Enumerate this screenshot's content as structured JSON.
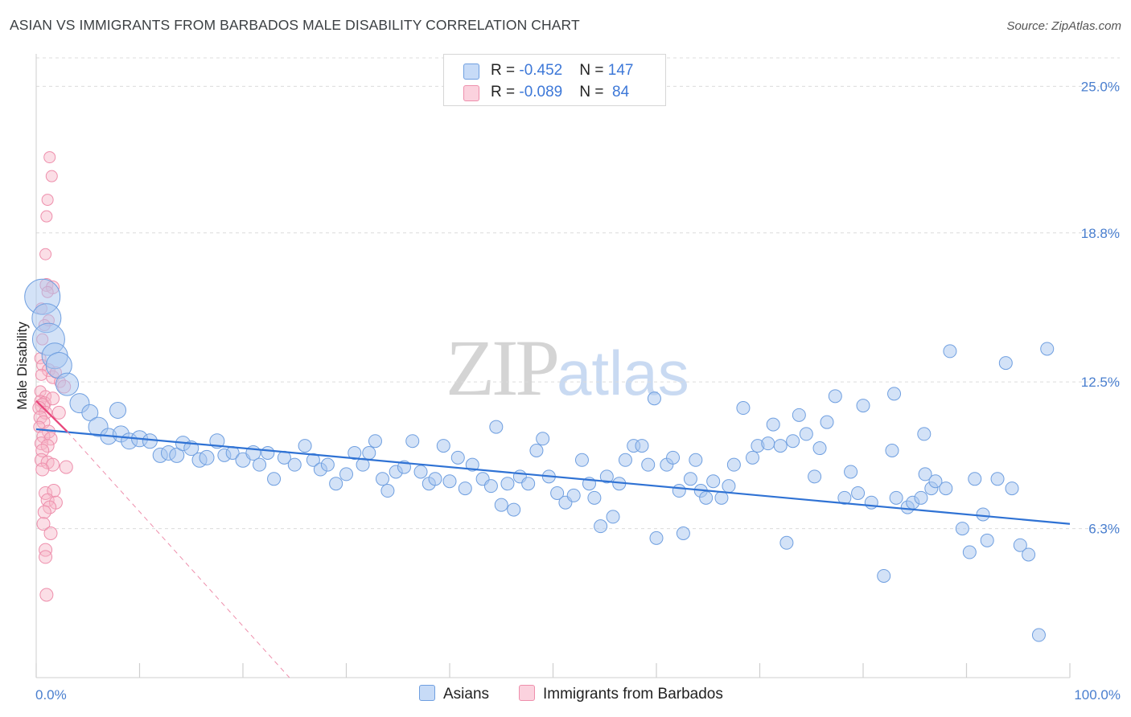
{
  "title": "ASIAN VS IMMIGRANTS FROM BARBADOS MALE DISABILITY CORRELATION CHART",
  "source": "Source: ZipAtlas.com",
  "watermark": {
    "zip": "ZIP",
    "atlas": "atlas"
  },
  "legend": {
    "rows": [
      {
        "r_label": "R = ",
        "r_value": "-0.452",
        "n_label": "N = ",
        "n_value": "147",
        "color": "#a8c5f0"
      },
      {
        "r_label": "R = ",
        "r_value": "-0.089",
        "n_label": "N = ",
        "n_value": " 84",
        "color": "#f7b6c8"
      }
    ]
  },
  "bottom_legend": [
    {
      "label": "Asians",
      "color": "#a8c5f0"
    },
    {
      "label": "Immigrants from Barbados",
      "color": "#f7b6c8"
    }
  ],
  "colors": {
    "blue_fill": "#a8c5f0",
    "blue_stroke": "#6f9fe0",
    "blue_line": "#2f72d4",
    "pink_fill": "#f7b6c8",
    "pink_stroke": "#ee8fac",
    "pink_line": "#e8447a",
    "grid": "#dcdcdc",
    "axis_label": "#4a7fcf"
  },
  "chart_data": {
    "type": "scatter",
    "title": "ASIAN VS IMMIGRANTS FROM BARBADOS MALE DISABILITY CORRELATION CHART",
    "xlabel": "",
    "ylabel": "Male Disability",
    "xlim": [
      0,
      100
    ],
    "ylim": [
      0,
      26.2
    ],
    "x_tick_labels": [
      "0.0%",
      "100.0%"
    ],
    "y_ticks": [
      6.3,
      12.5,
      18.8,
      25.0
    ],
    "y_tick_labels": [
      "6.3%",
      "12.5%",
      "18.8%",
      "25.0%"
    ],
    "series": [
      {
        "name": "Asians",
        "R": -0.452,
        "N": 147,
        "trend": {
          "x": [
            0,
            100
          ],
          "y": [
            10.5,
            6.5
          ]
        },
        "points": [
          [
            0.6,
            16.1,
            22
          ],
          [
            1.0,
            15.2,
            18
          ],
          [
            1.2,
            14.3,
            20
          ],
          [
            1.8,
            13.6,
            16
          ],
          [
            2.2,
            13.2,
            16
          ],
          [
            3.0,
            12.4,
            14
          ],
          [
            4.2,
            11.6,
            12
          ],
          [
            5.2,
            11.2,
            10
          ],
          [
            7.9,
            11.3,
            10
          ],
          [
            6.0,
            10.6,
            12
          ],
          [
            7.0,
            10.2,
            10
          ],
          [
            8.2,
            10.3,
            10
          ],
          [
            9.0,
            10.0,
            10
          ],
          [
            10.0,
            10.1,
            10
          ],
          [
            11.0,
            10.0,
            9
          ],
          [
            12.0,
            9.4,
            9
          ],
          [
            12.8,
            9.5,
            9
          ],
          [
            13.6,
            9.4,
            9
          ],
          [
            14.2,
            9.9,
            9
          ],
          [
            15.0,
            9.7,
            9
          ],
          [
            15.8,
            9.2,
            9
          ],
          [
            16.5,
            9.3,
            9
          ],
          [
            17.5,
            10.0,
            9
          ],
          [
            18.2,
            9.4,
            8
          ],
          [
            19.0,
            9.5,
            8
          ],
          [
            20.0,
            9.2,
            9
          ],
          [
            21.0,
            9.5,
            9
          ],
          [
            21.6,
            9.0,
            8
          ],
          [
            22.4,
            9.5,
            8
          ],
          [
            23.0,
            8.4,
            8
          ],
          [
            24.0,
            9.3,
            8
          ],
          [
            25.0,
            9.0,
            8
          ],
          [
            26.0,
            9.8,
            8
          ],
          [
            26.8,
            9.2,
            8
          ],
          [
            27.5,
            8.8,
            8
          ],
          [
            28.2,
            9.0,
            8
          ],
          [
            29.0,
            8.2,
            8
          ],
          [
            30.0,
            8.6,
            8
          ],
          [
            30.8,
            9.5,
            8
          ],
          [
            31.6,
            9.0,
            8
          ],
          [
            32.2,
            9.5,
            8
          ],
          [
            32.8,
            10.0,
            8
          ],
          [
            33.5,
            8.4,
            8
          ],
          [
            34.0,
            7.9,
            8
          ],
          [
            34.8,
            8.7,
            8
          ],
          [
            35.6,
            8.9,
            8
          ],
          [
            36.4,
            10.0,
            8
          ],
          [
            37.2,
            8.7,
            8
          ],
          [
            38.0,
            8.2,
            8
          ],
          [
            38.6,
            8.4,
            8
          ],
          [
            39.4,
            9.8,
            8
          ],
          [
            40.0,
            8.3,
            8
          ],
          [
            40.8,
            9.3,
            8
          ],
          [
            41.5,
            8.0,
            8
          ],
          [
            42.2,
            9.0,
            8
          ],
          [
            43.2,
            8.4,
            8
          ],
          [
            44.0,
            8.1,
            8
          ],
          [
            44.5,
            10.6,
            8
          ],
          [
            45.0,
            7.3,
            8
          ],
          [
            45.6,
            8.2,
            8
          ],
          [
            46.2,
            7.1,
            8
          ],
          [
            46.8,
            8.5,
            8
          ],
          [
            47.6,
            8.2,
            8
          ],
          [
            48.4,
            9.6,
            8
          ],
          [
            49.0,
            10.1,
            8
          ],
          [
            49.6,
            8.5,
            8
          ],
          [
            50.4,
            7.8,
            8
          ],
          [
            51.2,
            7.4,
            8
          ],
          [
            52.0,
            7.7,
            8
          ],
          [
            52.8,
            9.2,
            8
          ],
          [
            53.5,
            8.2,
            8
          ],
          [
            54.0,
            7.6,
            8
          ],
          [
            54.6,
            6.4,
            8
          ],
          [
            55.2,
            8.5,
            8
          ],
          [
            55.8,
            6.8,
            8
          ],
          [
            56.4,
            8.2,
            8
          ],
          [
            57.0,
            9.2,
            8
          ],
          [
            57.8,
            9.8,
            8
          ],
          [
            58.6,
            9.8,
            8
          ],
          [
            59.2,
            9.0,
            8
          ],
          [
            59.8,
            11.8,
            8
          ],
          [
            60.0,
            5.9,
            8
          ],
          [
            61.0,
            9.0,
            8
          ],
          [
            61.6,
            9.3,
            8
          ],
          [
            62.2,
            7.9,
            8
          ],
          [
            62.6,
            6.1,
            8
          ],
          [
            63.3,
            8.4,
            8
          ],
          [
            63.8,
            9.2,
            8
          ],
          [
            64.3,
            7.9,
            8
          ],
          [
            64.8,
            7.6,
            8
          ],
          [
            65.5,
            8.3,
            8
          ],
          [
            66.3,
            7.6,
            8
          ],
          [
            67.0,
            8.1,
            8
          ],
          [
            67.5,
            9.0,
            8
          ],
          [
            68.4,
            11.4,
            8
          ],
          [
            69.3,
            9.3,
            8
          ],
          [
            69.8,
            9.8,
            8
          ],
          [
            70.8,
            9.9,
            8
          ],
          [
            71.3,
            10.7,
            8
          ],
          [
            72.0,
            9.8,
            8
          ],
          [
            72.6,
            5.7,
            8
          ],
          [
            73.2,
            10.0,
            8
          ],
          [
            73.8,
            11.1,
            8
          ],
          [
            74.5,
            10.3,
            8
          ],
          [
            75.3,
            8.5,
            8
          ],
          [
            75.8,
            9.7,
            8
          ],
          [
            76.5,
            10.8,
            8
          ],
          [
            77.3,
            11.9,
            8
          ],
          [
            78.2,
            7.6,
            8
          ],
          [
            78.8,
            8.7,
            8
          ],
          [
            79.5,
            7.8,
            8
          ],
          [
            80.0,
            11.5,
            8
          ],
          [
            80.8,
            7.4,
            8
          ],
          [
            82.0,
            4.3,
            8
          ],
          [
            82.8,
            9.6,
            8
          ],
          [
            83.2,
            7.6,
            8
          ],
          [
            84.3,
            7.2,
            8
          ],
          [
            84.8,
            7.4,
            8
          ],
          [
            85.6,
            7.6,
            8
          ],
          [
            86.0,
            8.6,
            8
          ],
          [
            86.6,
            8.0,
            8
          ],
          [
            87.0,
            8.3,
            8
          ],
          [
            88.0,
            8.0,
            8
          ],
          [
            88.4,
            13.8,
            8
          ],
          [
            89.6,
            6.3,
            8
          ],
          [
            90.3,
            5.3,
            8
          ],
          [
            90.8,
            8.4,
            8
          ],
          [
            91.6,
            6.9,
            8
          ],
          [
            92.0,
            5.8,
            8
          ],
          [
            93.0,
            8.4,
            8
          ],
          [
            93.8,
            13.3,
            8
          ],
          [
            94.4,
            8.0,
            8
          ],
          [
            95.2,
            5.6,
            8
          ],
          [
            96.0,
            5.2,
            8
          ],
          [
            97.0,
            1.8,
            8
          ],
          [
            97.8,
            13.9,
            8
          ],
          [
            85.9,
            10.3,
            8
          ],
          [
            83.0,
            12.0,
            8
          ]
        ]
      },
      {
        "name": "Immigrants from Barbados",
        "R": -0.089,
        "N": 84,
        "trend": {
          "x": [
            0,
            3.0
          ],
          "y": [
            11.7,
            10.4
          ]
        },
        "trend_dashed": {
          "x": [
            3.0,
            24.5
          ],
          "y": [
            10.4,
            0.0
          ]
        },
        "points": [
          [
            1.3,
            22.0,
            7
          ],
          [
            1.5,
            21.2,
            7
          ],
          [
            1.1,
            20.2,
            7
          ],
          [
            1.0,
            19.5,
            7
          ],
          [
            0.9,
            17.9,
            7
          ],
          [
            1.0,
            16.6,
            8
          ],
          [
            1.6,
            16.5,
            8
          ],
          [
            1.1,
            16.3,
            7
          ],
          [
            0.5,
            15.6,
            7
          ],
          [
            1.2,
            15.1,
            7
          ],
          [
            0.6,
            14.3,
            7
          ],
          [
            0.4,
            13.5,
            7
          ],
          [
            0.6,
            13.2,
            7
          ],
          [
            1.2,
            13.0,
            8
          ],
          [
            0.5,
            12.8,
            7
          ],
          [
            1.6,
            12.7,
            8
          ],
          [
            2.3,
            12.5,
            7
          ],
          [
            2.7,
            12.3,
            8
          ],
          [
            0.4,
            12.1,
            7
          ],
          [
            0.9,
            11.9,
            7
          ],
          [
            0.4,
            11.7,
            7
          ],
          [
            0.8,
            11.6,
            8
          ],
          [
            0.6,
            11.5,
            9
          ],
          [
            0.3,
            11.4,
            8
          ],
          [
            0.9,
            11.2,
            8
          ],
          [
            0.4,
            11.0,
            8
          ],
          [
            0.7,
            10.8,
            8
          ],
          [
            0.3,
            10.6,
            7
          ],
          [
            1.2,
            10.4,
            8
          ],
          [
            0.7,
            10.2,
            8
          ],
          [
            1.4,
            10.1,
            8
          ],
          [
            0.5,
            9.9,
            8
          ],
          [
            1.1,
            9.8,
            8
          ],
          [
            0.6,
            9.6,
            8
          ],
          [
            0.5,
            9.2,
            8
          ],
          [
            1.1,
            9.1,
            8
          ],
          [
            1.6,
            9.0,
            8
          ],
          [
            0.6,
            8.8,
            8
          ],
          [
            2.9,
            8.9,
            8
          ],
          [
            0.9,
            7.8,
            8
          ],
          [
            1.7,
            7.9,
            8
          ],
          [
            1.1,
            7.5,
            8
          ],
          [
            1.9,
            7.4,
            8
          ],
          [
            1.3,
            7.2,
            8
          ],
          [
            0.8,
            7.0,
            8
          ],
          [
            0.7,
            6.5,
            8
          ],
          [
            1.4,
            6.1,
            8
          ],
          [
            0.9,
            5.4,
            8
          ],
          [
            0.9,
            5.1,
            8
          ],
          [
            1.0,
            3.5,
            8
          ],
          [
            1.6,
            11.8,
            8
          ],
          [
            2.2,
            11.2,
            8
          ],
          [
            1.9,
            12.9,
            7
          ],
          [
            0.8,
            14.9,
            7
          ]
        ]
      }
    ]
  }
}
